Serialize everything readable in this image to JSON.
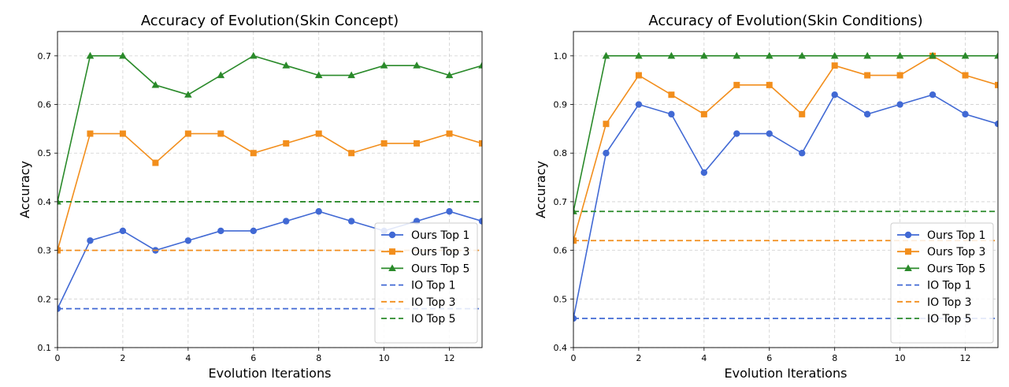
{
  "colors": {
    "top1": "#4169d4",
    "top3": "#f28e1c",
    "top5": "#2a8a2a"
  },
  "chart_data": [
    {
      "type": "line",
      "title": "Accuracy of Evolution(Skin Concept)",
      "xlabel": "Evolution Iterations",
      "ylabel": "Accuracy",
      "xlim": [
        0,
        13
      ],
      "ylim": [
        0.1,
        0.75
      ],
      "xticks": [
        0,
        2,
        4,
        6,
        8,
        10,
        12
      ],
      "yticks": [
        0.1,
        0.2,
        0.3,
        0.4,
        0.5,
        0.6,
        0.7
      ],
      "ytick_labels": [
        "0.1",
        "0.2",
        "0.3",
        "0.4",
        "0.5",
        "0.6",
        "0.7"
      ],
      "grid": true,
      "legend_position": "lower-right",
      "x": [
        0,
        1,
        2,
        3,
        4,
        5,
        6,
        7,
        8,
        9,
        10,
        11,
        12,
        13
      ],
      "series": [
        {
          "name": "Ours Top 1",
          "key": "top1",
          "marker": "circle",
          "style": "solid",
          "values": [
            0.18,
            0.32,
            0.34,
            0.3,
            0.32,
            0.34,
            0.34,
            0.36,
            0.38,
            0.36,
            0.34,
            0.36,
            0.38,
            0.36
          ]
        },
        {
          "name": "Ours Top 3",
          "key": "top3",
          "marker": "square",
          "style": "solid",
          "values": [
            0.3,
            0.54,
            0.54,
            0.48,
            0.54,
            0.54,
            0.5,
            0.52,
            0.54,
            0.5,
            0.52,
            0.52,
            0.54,
            0.52
          ]
        },
        {
          "name": "Ours Top 5",
          "key": "top5",
          "marker": "triangle",
          "style": "solid",
          "values": [
            0.4,
            0.7,
            0.7,
            0.64,
            0.62,
            0.66,
            0.7,
            0.68,
            0.66,
            0.66,
            0.68,
            0.68,
            0.66,
            0.68
          ]
        },
        {
          "name": "IO Top 1",
          "key": "top1",
          "marker": "none",
          "style": "dashed",
          "constant": 0.18
        },
        {
          "name": "IO Top 3",
          "key": "top3",
          "marker": "none",
          "style": "dashed",
          "constant": 0.3
        },
        {
          "name": "IO Top 5",
          "key": "top5",
          "marker": "none",
          "style": "dashed",
          "constant": 0.4
        }
      ]
    },
    {
      "type": "line",
      "title": "Accuracy of Evolution(Skin Conditions)",
      "xlabel": "Evolution Iterations",
      "ylabel": "Accuracy",
      "xlim": [
        0,
        13
      ],
      "ylim": [
        0.4,
        1.05
      ],
      "xticks": [
        0,
        2,
        4,
        6,
        8,
        10,
        12
      ],
      "yticks": [
        0.4,
        0.5,
        0.6,
        0.7,
        0.8,
        0.9,
        1.0
      ],
      "ytick_labels": [
        "0.4",
        "0.5",
        "0.6",
        "0.7",
        "0.8",
        "0.9",
        "1.0"
      ],
      "grid": true,
      "legend_position": "lower-right",
      "x": [
        0,
        1,
        2,
        3,
        4,
        5,
        6,
        7,
        8,
        9,
        10,
        11,
        12,
        13
      ],
      "series": [
        {
          "name": "Ours Top 1",
          "key": "top1",
          "marker": "circle",
          "style": "solid",
          "values": [
            0.46,
            0.8,
            0.9,
            0.88,
            0.76,
            0.84,
            0.84,
            0.8,
            0.92,
            0.88,
            0.9,
            0.92,
            0.88,
            0.86
          ]
        },
        {
          "name": "Ours Top 3",
          "key": "top3",
          "marker": "square",
          "style": "solid",
          "values": [
            0.62,
            0.86,
            0.96,
            0.92,
            0.88,
            0.94,
            0.94,
            0.88,
            0.98,
            0.96,
            0.96,
            1.0,
            0.96,
            0.94
          ]
        },
        {
          "name": "Ours Top 5",
          "key": "top5",
          "marker": "triangle",
          "style": "solid",
          "values": [
            0.68,
            1.0,
            1.0,
            1.0,
            1.0,
            1.0,
            1.0,
            1.0,
            1.0,
            1.0,
            1.0,
            1.0,
            1.0,
            1.0
          ]
        },
        {
          "name": "IO Top 1",
          "key": "top1",
          "marker": "none",
          "style": "dashed",
          "constant": 0.46
        },
        {
          "name": "IO Top 3",
          "key": "top3",
          "marker": "none",
          "style": "dashed",
          "constant": 0.62
        },
        {
          "name": "IO Top 5",
          "key": "top5",
          "marker": "none",
          "style": "dashed",
          "constant": 0.68
        }
      ]
    }
  ]
}
